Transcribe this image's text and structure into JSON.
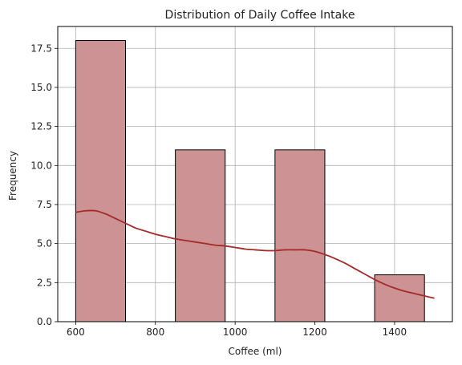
{
  "chart_data": {
    "type": "bar",
    "title": "Distribution of Daily Coffee Intake",
    "xlabel": "Coffee (ml)",
    "ylabel": "Frequency",
    "xlim": [
      555,
      1545
    ],
    "ylim": [
      0,
      18.9
    ],
    "grid": true,
    "xticks": [
      600,
      800,
      1000,
      1200,
      1400
    ],
    "xtick_labels": [
      "600",
      "800",
      "1000",
      "1200",
      "1400"
    ],
    "yticks": [
      0,
      2.5,
      5,
      7.5,
      10,
      12.5,
      15,
      17.5
    ],
    "ytick_labels": [
      "0.0",
      "2.5",
      "5.0",
      "7.5",
      "10.0",
      "12.5",
      "15.0",
      "17.5"
    ],
    "bins": [
      {
        "start": 600,
        "end": 725,
        "count": 18
      },
      {
        "start": 850,
        "end": 975,
        "count": 11
      },
      {
        "start": 1100,
        "end": 1225,
        "count": 11
      },
      {
        "start": 1350,
        "end": 1475,
        "count": 3
      }
    ],
    "kde": {
      "name": "density curve",
      "x": [
        600,
        625,
        650,
        675,
        700,
        725,
        750,
        775,
        800,
        825,
        850,
        875,
        900,
        925,
        950,
        975,
        1000,
        1025,
        1050,
        1075,
        1100,
        1125,
        1150,
        1175,
        1200,
        1225,
        1250,
        1275,
        1300,
        1325,
        1350,
        1375,
        1400,
        1425,
        1450,
        1475,
        1500
      ],
      "y": [
        7.0,
        7.1,
        7.1,
        6.9,
        6.6,
        6.3,
        6.0,
        5.8,
        5.6,
        5.45,
        5.3,
        5.2,
        5.1,
        5.0,
        4.9,
        4.85,
        4.75,
        4.65,
        4.6,
        4.55,
        4.55,
        4.6,
        4.6,
        4.6,
        4.5,
        4.3,
        4.05,
        3.75,
        3.4,
        3.05,
        2.7,
        2.4,
        2.15,
        1.95,
        1.8,
        1.65,
        1.5
      ]
    },
    "colors": {
      "bar_fill": "#cd9293",
      "bar_edge": "#000000",
      "kde_line": "#a52a2a",
      "grid": "#b0b0b0"
    }
  }
}
